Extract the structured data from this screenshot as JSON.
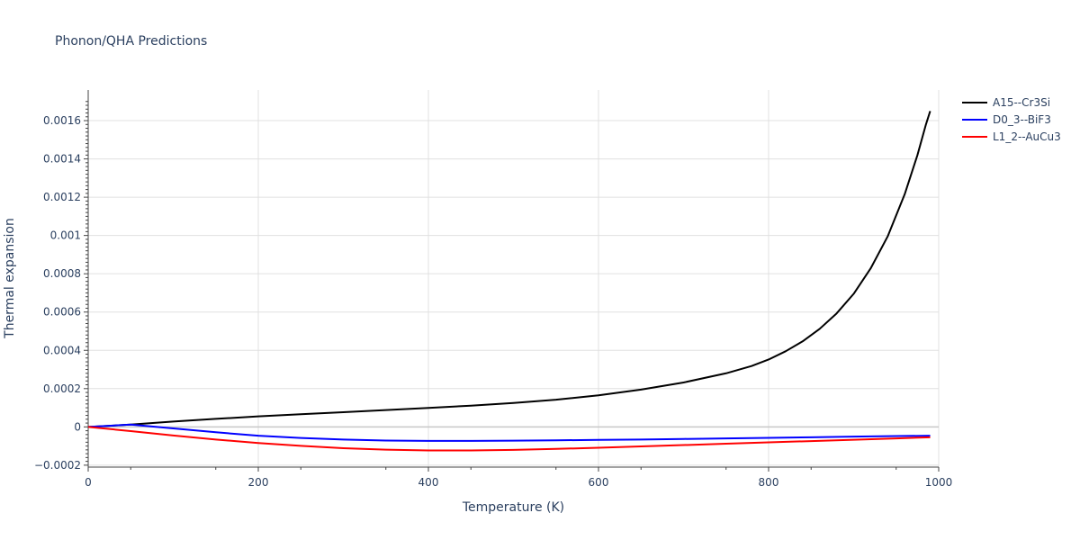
{
  "chart_data": {
    "type": "line",
    "title": "Phonon/QHA Predictions",
    "xlabel": "Temperature (K)",
    "ylabel": "Thermal expansion",
    "xlim": [
      0,
      1000
    ],
    "ylim": [
      -0.00021,
      0.00176
    ],
    "x_ticks": [
      0,
      200,
      400,
      600,
      800,
      1000
    ],
    "x_tick_labels": [
      "0",
      "200",
      "400",
      "600",
      "800",
      "1000"
    ],
    "y_ticks": [
      -0.0002,
      0,
      0.0002,
      0.0004,
      0.0006,
      0.0008,
      0.001,
      0.0012,
      0.0014,
      0.0016
    ],
    "y_tick_labels": [
      "−0.0002",
      "0",
      "0.0002",
      "0.0004",
      "0.0006",
      "0.0008",
      "0.001",
      "0.0012",
      "0.0014",
      "0.0016"
    ],
    "grid": true,
    "legend_position": "top-right",
    "series": [
      {
        "name": "A15--Cr3Si",
        "color": "#000000",
        "x": [
          0,
          50,
          100,
          150,
          200,
          250,
          300,
          350,
          400,
          450,
          500,
          550,
          600,
          650,
          700,
          750,
          780,
          800,
          820,
          840,
          860,
          880,
          900,
          920,
          940,
          960,
          975,
          985,
          990
        ],
        "y": [
          0,
          1.2e-05,
          2.8e-05,
          4.2e-05,
          5.5e-05,
          6.6e-05,
          7.7e-05,
          8.8e-05,
          9.9e-05,
          0.000111,
          0.000125,
          0.000142,
          0.000165,
          0.000195,
          0.000232,
          0.00028,
          0.000318,
          0.000352,
          0.000395,
          0.000447,
          0.000512,
          0.000593,
          0.000695,
          0.000828,
          0.000995,
          0.001215,
          0.00142,
          0.00158,
          0.00165
        ]
      },
      {
        "name": "D0_3--BiF3",
        "color": "#0000ff",
        "x": [
          0,
          50,
          100,
          150,
          200,
          250,
          300,
          350,
          400,
          450,
          500,
          550,
          600,
          650,
          700,
          750,
          800,
          850,
          900,
          950,
          990
        ],
        "y": [
          0,
          1.2e-05,
          -8e-06,
          -2.8e-05,
          -4.6e-05,
          -5.8e-05,
          -6.6e-05,
          -7.1e-05,
          -7.3e-05,
          -7.3e-05,
          -7.2e-05,
          -7e-05,
          -6.8e-05,
          -6.6e-05,
          -6.3e-05,
          -6e-05,
          -5.7e-05,
          -5.4e-05,
          -5.1e-05,
          -4.8e-05,
          -4.6e-05
        ]
      },
      {
        "name": "L1_2--AuCu3",
        "color": "#ff0000",
        "x": [
          0,
          50,
          100,
          150,
          200,
          250,
          300,
          350,
          400,
          450,
          500,
          550,
          600,
          650,
          700,
          750,
          800,
          850,
          900,
          950,
          990
        ],
        "y": [
          0,
          -2.2e-05,
          -4.5e-05,
          -6.6e-05,
          -8.4e-05,
          -9.9e-05,
          -0.000111,
          -0.000119,
          -0.000123,
          -0.000123,
          -0.00012,
          -0.000115,
          -0.000109,
          -0.000102,
          -9.5e-05,
          -8.8e-05,
          -8.1e-05,
          -7.4e-05,
          -6.7e-05,
          -6e-05,
          -5.4e-05
        ]
      }
    ]
  }
}
